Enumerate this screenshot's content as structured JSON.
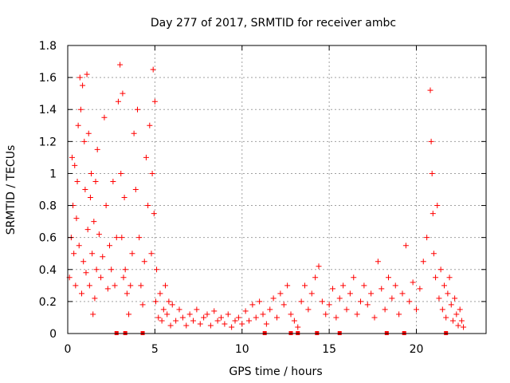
{
  "chart_data": {
    "type": "scatter",
    "title": "Day 277 of 2017, SRMTID for receiver ambc",
    "xlabel": "GPS time / hours",
    "ylabel": "SRMTID / TECUs",
    "xlim": [
      0,
      24
    ],
    "ylim": [
      0,
      1.8
    ],
    "xticks": [
      0,
      5,
      10,
      15,
      20
    ],
    "yticks": [
      0,
      0.2,
      0.4,
      0.6,
      0.8,
      1,
      1.2,
      1.4,
      1.6,
      1.8
    ],
    "xtick_labels": [
      "0",
      "5",
      "10",
      "15",
      "20"
    ],
    "ytick_labels": [
      "0",
      "0.2",
      "0.4",
      "0.6",
      "0.8",
      "1",
      "1.2",
      "1.4",
      "1.6",
      "1.8"
    ],
    "marker": "+",
    "grid": true,
    "color": "#ff0000",
    "series": [
      {
        "name": "ambc",
        "points": [
          [
            0.1,
            0.35
          ],
          [
            0.2,
            0.6
          ],
          [
            0.25,
            1.1
          ],
          [
            0.3,
            0.8
          ],
          [
            0.35,
            0.5
          ],
          [
            0.4,
            1.05
          ],
          [
            0.45,
            0.3
          ],
          [
            0.5,
            0.72
          ],
          [
            0.55,
            0.95
          ],
          [
            0.6,
            1.3
          ],
          [
            0.65,
            0.55
          ],
          [
            0.7,
            1.6
          ],
          [
            0.75,
            1.4
          ],
          [
            0.8,
            0.25
          ],
          [
            0.85,
            1.55
          ],
          [
            0.9,
            0.45
          ],
          [
            0.95,
            1.2
          ],
          [
            1.0,
            0.9
          ],
          [
            1.05,
            0.38
          ],
          [
            1.1,
            1.62
          ],
          [
            1.15,
            0.65
          ],
          [
            1.2,
            1.25
          ],
          [
            1.25,
            0.3
          ],
          [
            1.3,
            0.85
          ],
          [
            1.35,
            1.0
          ],
          [
            1.4,
            0.5
          ],
          [
            1.45,
            0.12
          ],
          [
            1.5,
            0.7
          ],
          [
            1.55,
            0.22
          ],
          [
            1.6,
            0.95
          ],
          [
            1.65,
            0.4
          ],
          [
            1.7,
            1.15
          ],
          [
            1.8,
            0.62
          ],
          [
            1.9,
            0.35
          ],
          [
            2.0,
            0.48
          ],
          [
            2.1,
            1.35
          ],
          [
            2.2,
            0.8
          ],
          [
            2.3,
            0.28
          ],
          [
            2.4,
            0.55
          ],
          [
            2.5,
            0.4
          ],
          [
            2.6,
            0.95
          ],
          [
            2.7,
            0.3
          ],
          [
            2.8,
            0.6
          ],
          [
            2.9,
            1.45
          ],
          [
            3.0,
            1.68
          ],
          [
            3.05,
            1.0
          ],
          [
            3.1,
            0.6
          ],
          [
            3.15,
            1.5
          ],
          [
            3.2,
            0.35
          ],
          [
            3.25,
            0.85
          ],
          [
            3.3,
            0.4
          ],
          [
            3.4,
            0.25
          ],
          [
            3.5,
            0.12
          ],
          [
            3.6,
            0.3
          ],
          [
            3.7,
            0.5
          ],
          [
            3.8,
            1.25
          ],
          [
            3.9,
            0.9
          ],
          [
            4.0,
            1.4
          ],
          [
            4.1,
            0.6
          ],
          [
            4.2,
            0.3
          ],
          [
            4.3,
            0.18
          ],
          [
            4.4,
            0.45
          ],
          [
            4.5,
            1.1
          ],
          [
            4.6,
            0.8
          ],
          [
            4.7,
            1.3
          ],
          [
            4.8,
            0.5
          ],
          [
            4.85,
            1.0
          ],
          [
            4.9,
            1.65
          ],
          [
            4.95,
            0.75
          ],
          [
            5.0,
            1.45
          ],
          [
            5.05,
            0.2
          ],
          [
            5.1,
            0.4
          ],
          [
            5.2,
            0.1
          ],
          [
            5.3,
            0.25
          ],
          [
            5.4,
            0.08
          ],
          [
            5.5,
            0.15
          ],
          [
            5.6,
            0.3
          ],
          [
            5.7,
            0.12
          ],
          [
            5.8,
            0.2
          ],
          [
            5.9,
            0.05
          ],
          [
            6.0,
            0.18
          ],
          [
            6.2,
            0.08
          ],
          [
            6.4,
            0.15
          ],
          [
            6.6,
            0.1
          ],
          [
            6.8,
            0.05
          ],
          [
            7.0,
            0.12
          ],
          [
            7.2,
            0.08
          ],
          [
            7.4,
            0.15
          ],
          [
            7.6,
            0.06
          ],
          [
            7.8,
            0.1
          ],
          [
            8.0,
            0.12
          ],
          [
            8.2,
            0.05
          ],
          [
            8.4,
            0.14
          ],
          [
            8.6,
            0.08
          ],
          [
            8.8,
            0.1
          ],
          [
            9.0,
            0.06
          ],
          [
            9.2,
            0.12
          ],
          [
            9.4,
            0.04
          ],
          [
            9.6,
            0.08
          ],
          [
            9.8,
            0.1
          ],
          [
            10.0,
            0.06
          ],
          [
            10.2,
            0.14
          ],
          [
            10.4,
            0.08
          ],
          [
            10.6,
            0.18
          ],
          [
            10.8,
            0.1
          ],
          [
            11.0,
            0.2
          ],
          [
            11.2,
            0.12
          ],
          [
            11.4,
            0.06
          ],
          [
            11.6,
            0.15
          ],
          [
            11.8,
            0.22
          ],
          [
            12.0,
            0.1
          ],
          [
            12.2,
            0.25
          ],
          [
            12.4,
            0.18
          ],
          [
            12.6,
            0.3
          ],
          [
            12.8,
            0.12
          ],
          [
            13.0,
            0.08
          ],
          [
            13.2,
            0.04
          ],
          [
            13.4,
            0.2
          ],
          [
            13.6,
            0.3
          ],
          [
            13.8,
            0.15
          ],
          [
            14.0,
            0.25
          ],
          [
            14.2,
            0.35
          ],
          [
            14.4,
            0.42
          ],
          [
            14.6,
            0.2
          ],
          [
            14.8,
            0.12
          ],
          [
            15.0,
            0.18
          ],
          [
            15.2,
            0.28
          ],
          [
            15.4,
            0.1
          ],
          [
            15.6,
            0.22
          ],
          [
            15.8,
            0.3
          ],
          [
            16.0,
            0.15
          ],
          [
            16.2,
            0.25
          ],
          [
            16.4,
            0.35
          ],
          [
            16.6,
            0.12
          ],
          [
            16.8,
            0.2
          ],
          [
            17.0,
            0.3
          ],
          [
            17.2,
            0.18
          ],
          [
            17.4,
            0.25
          ],
          [
            17.6,
            0.1
          ],
          [
            17.8,
            0.45
          ],
          [
            18.0,
            0.28
          ],
          [
            18.2,
            0.15
          ],
          [
            18.4,
            0.35
          ],
          [
            18.6,
            0.22
          ],
          [
            18.8,
            0.3
          ],
          [
            19.0,
            0.12
          ],
          [
            19.2,
            0.25
          ],
          [
            19.4,
            0.55
          ],
          [
            19.6,
            0.2
          ],
          [
            19.8,
            0.32
          ],
          [
            20.0,
            0.15
          ],
          [
            20.2,
            0.28
          ],
          [
            20.4,
            0.45
          ],
          [
            20.6,
            0.6
          ],
          [
            20.8,
            1.52
          ],
          [
            20.85,
            1.2
          ],
          [
            20.9,
            1.0
          ],
          [
            20.95,
            0.75
          ],
          [
            21.0,
            0.5
          ],
          [
            21.1,
            0.35
          ],
          [
            21.2,
            0.8
          ],
          [
            21.3,
            0.22
          ],
          [
            21.4,
            0.4
          ],
          [
            21.5,
            0.15
          ],
          [
            21.6,
            0.3
          ],
          [
            21.7,
            0.1
          ],
          [
            21.8,
            0.25
          ],
          [
            21.9,
            0.35
          ],
          [
            22.0,
            0.18
          ],
          [
            22.1,
            0.08
          ],
          [
            22.2,
            0.22
          ],
          [
            22.3,
            0.12
          ],
          [
            22.4,
            0.05
          ],
          [
            22.5,
            0.15
          ],
          [
            22.6,
            0.08
          ],
          [
            22.7,
            0.04
          ]
        ],
        "zero_points_x": [
          2.8,
          3.3,
          4.3,
          11.3,
          12.8,
          13.2,
          14.3,
          15.6,
          18.3,
          19.3,
          21.7
        ]
      }
    ]
  }
}
